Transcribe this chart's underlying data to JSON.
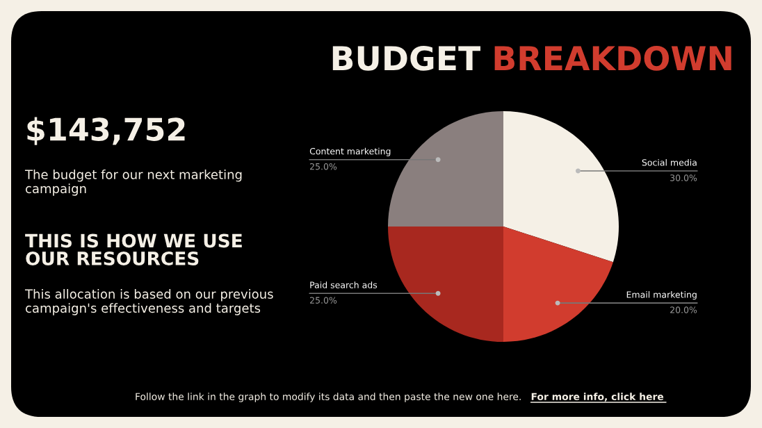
{
  "chart_data": {
    "type": "pie",
    "title": "BUDGET BREAKDOWN",
    "categories": [
      "Social media",
      "Email marketing",
      "Paid search ads",
      "Content marketing"
    ],
    "values": [
      30,
      20,
      25,
      25
    ],
    "colors": [
      "#f5f0e6",
      "#d13c2e",
      "#a8281f",
      "#8a7f7e"
    ],
    "value_labels": [
      "30.0%",
      "20.0%",
      "25.0%",
      "25.0%"
    ],
    "annotations": [
      "$143,752",
      "The budget for our next marketing campaign",
      "THIS IS HOW WE USE OUR RESOURCES",
      "This allocation is based on our previous campaign's effectiveness and targets",
      "Follow the link in the graph to modify its data and then paste the new one here.",
      "For more info, click here"
    ],
    "legend": false
  }
}
